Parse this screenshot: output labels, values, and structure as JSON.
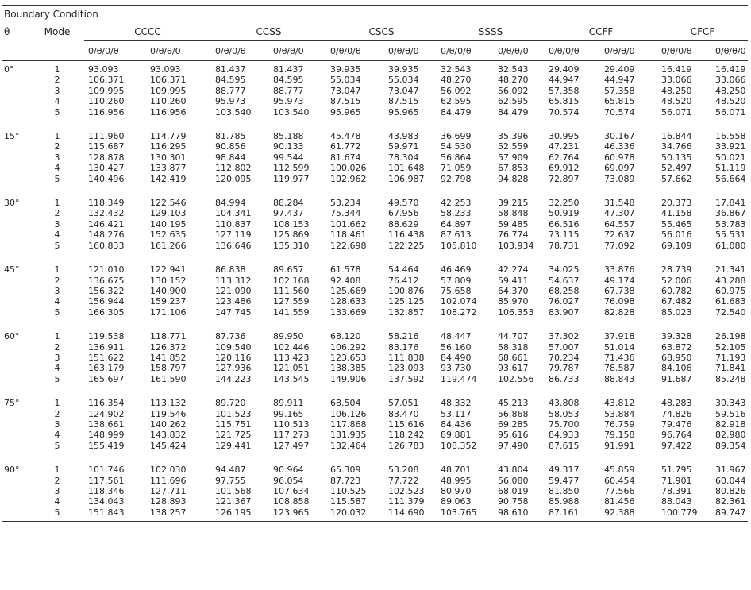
{
  "caption": "Boundary Condition",
  "headers": {
    "theta": "θ",
    "mode": "Mode",
    "groups": [
      "CCCC",
      "CCSS",
      "CSCS",
      "SSSS",
      "CCFF",
      "CFCF"
    ],
    "subs": [
      "0/θ/0/θ",
      "0/θ/θ/0",
      "0/θ/0/θ",
      "0/θ/θ/0",
      "0/θ/0/θ",
      "0/θ/θ/0",
      "0/θ/0/θ",
      "0/θ/θ/0",
      "0/θ/0/θ",
      "0/θ/θ/0",
      "0/θ/0/θ",
      "0/θ/θ/0"
    ]
  },
  "blocks": [
    {
      "angle": "0°",
      "rows": [
        {
          "mode": "1",
          "v": [
            "93.093",
            "93.093",
            "81.437",
            "81.437",
            "39.935",
            "39.935",
            "32.543",
            "32.543",
            "29.409",
            "29.409",
            "16.419",
            "16.419"
          ]
        },
        {
          "mode": "2",
          "v": [
            "106.371",
            "106.371",
            "84.595",
            "84.595",
            "55.034",
            "55.034",
            "48.270",
            "48.270",
            "44.947",
            "44.947",
            "33.066",
            "33.066"
          ]
        },
        {
          "mode": "3",
          "v": [
            "109.995",
            "109.995",
            "88.777",
            "88.777",
            "73.047",
            "73.047",
            "56.092",
            "56.092",
            "57.358",
            "57.358",
            "48.250",
            "48.250"
          ]
        },
        {
          "mode": "4",
          "v": [
            "110.260",
            "110.260",
            "95.973",
            "95.973",
            "87.515",
            "87.515",
            "62.595",
            "62.595",
            "65.815",
            "65.815",
            "48.520",
            "48.520"
          ]
        },
        {
          "mode": "5",
          "v": [
            "116.956",
            "116.956",
            "103.540",
            "103.540",
            "95.965",
            "95.965",
            "84.479",
            "84.479",
            "70.574",
            "70.574",
            "56.071",
            "56.071"
          ]
        }
      ]
    },
    {
      "angle": "15°",
      "rows": [
        {
          "mode": "1",
          "v": [
            "111.960",
            "114.779",
            "81.785",
            "85.188",
            "45.478",
            "43.983",
            "36.699",
            "35.396",
            "30.995",
            "30.167",
            "16.844",
            "16.558"
          ]
        },
        {
          "mode": "2",
          "v": [
            "115.687",
            "116.295",
            "90.856",
            "90.133",
            "61.772",
            "59.971",
            "54.530",
            "52.559",
            "47.231",
            "46.336",
            "34.766",
            "33.921"
          ]
        },
        {
          "mode": "3",
          "v": [
            "128.878",
            "130.301",
            "98.844",
            "99.544",
            "81.674",
            "78.304",
            "56.864",
            "57.909",
            "62.764",
            "60.978",
            "50.135",
            "50.021"
          ]
        },
        {
          "mode": "4",
          "v": [
            "130.427",
            "133.877",
            "112.802",
            "112.599",
            "100.026",
            "101.648",
            "71.059",
            "67.853",
            "69.912",
            "69.097",
            "52.497",
            "51.119"
          ]
        },
        {
          "mode": "5",
          "v": [
            "140.496",
            "142.419",
            "120.095",
            "119.977",
            "102.962",
            "106.987",
            "92.798",
            "94.828",
            "72.897",
            "73.089",
            "57.662",
            "56.664"
          ]
        }
      ]
    },
    {
      "angle": "30°",
      "rows": [
        {
          "mode": "1",
          "v": [
            "118.349",
            "122.546",
            "84.994",
            "88.284",
            "53.234",
            "49.570",
            "42.253",
            "39.215",
            "32.250",
            "31.548",
            "20.373",
            "17.841"
          ]
        },
        {
          "mode": "2",
          "v": [
            "132.432",
            "129.103",
            "104.341",
            "97.437",
            "75.344",
            "67.956",
            "58.233",
            "58.848",
            "50.919",
            "47.307",
            "41.158",
            "36.867"
          ]
        },
        {
          "mode": "3",
          "v": [
            "146.421",
            "140.195",
            "110.837",
            "108.153",
            "101.662",
            "88.629",
            "64.897",
            "59.485",
            "66.516",
            "64.557",
            "55.465",
            "53.783"
          ]
        },
        {
          "mode": "4",
          "v": [
            "148.276",
            "152.635",
            "127.119",
            "125.869",
            "118.461",
            "116.438",
            "87.613",
            "76.774",
            "73.115",
            "72.637",
            "56.016",
            "55.531"
          ]
        },
        {
          "mode": "5",
          "v": [
            "160.833",
            "161.266",
            "136.646",
            "135.310",
            "122.698",
            "122.225",
            "105.810",
            "103.934",
            "78.731",
            "77.092",
            "69.109",
            "61.080"
          ]
        }
      ]
    },
    {
      "angle": "45°",
      "rows": [
        {
          "mode": "1",
          "v": [
            "121.010",
            "122.941",
            "86.838",
            "89.657",
            "61.578",
            "54.464",
            "46.469",
            "42.274",
            "34.025",
            "33.876",
            "28.739",
            "21.341"
          ]
        },
        {
          "mode": "2",
          "v": [
            "136.675",
            "130.152",
            "113.312",
            "102.168",
            "92.408",
            "76.412",
            "57.809",
            "59.411",
            "54.637",
            "49.174",
            "52.006",
            "43.288"
          ]
        },
        {
          "mode": "3",
          "v": [
            "156.322",
            "140.900",
            "121.090",
            "111.560",
            "125.669",
            "100.876",
            "75.658",
            "64.370",
            "68.258",
            "67.738",
            "60.782",
            "60.975"
          ]
        },
        {
          "mode": "4",
          "v": [
            "156.944",
            "159.237",
            "123.486",
            "127.559",
            "128.633",
            "125.125",
            "102.074",
            "85.970",
            "76.027",
            "76.098",
            "67.482",
            "61.683"
          ]
        },
        {
          "mode": "5",
          "v": [
            "166.305",
            "171.106",
            "147.745",
            "141.559",
            "133.669",
            "132.857",
            "108.272",
            "106.353",
            "83.907",
            "82.828",
            "85.023",
            "72.540"
          ]
        }
      ]
    },
    {
      "angle": "60°",
      "rows": [
        {
          "mode": "1",
          "v": [
            "119.538",
            "118.771",
            "87.736",
            "89.950",
            "68.120",
            "58.216",
            "48.447",
            "44.707",
            "37.302",
            "37.918",
            "39.328",
            "26.198"
          ]
        },
        {
          "mode": "2",
          "v": [
            "136.911",
            "126.372",
            "109.540",
            "102.446",
            "106.292",
            "83.176",
            "56.160",
            "58.318",
            "57.007",
            "51.014",
            "63.872",
            "52.105"
          ]
        },
        {
          "mode": "3",
          "v": [
            "151.622",
            "141.852",
            "120.116",
            "113.423",
            "123.653",
            "111.838",
            "84.490",
            "68.661",
            "70.234",
            "71.436",
            "68.950",
            "71.193"
          ]
        },
        {
          "mode": "4",
          "v": [
            "163.179",
            "158.797",
            "127.936",
            "121.051",
            "138.385",
            "123.093",
            "93.730",
            "93.617",
            "79.787",
            "78.587",
            "84.106",
            "71.841"
          ]
        },
        {
          "mode": "5",
          "v": [
            "165.697",
            "161.590",
            "144.223",
            "143.545",
            "149.906",
            "137.592",
            "119.474",
            "102.556",
            "86.733",
            "88.843",
            "91.687",
            "85.248"
          ]
        }
      ]
    },
    {
      "angle": "75°",
      "rows": [
        {
          "mode": "1",
          "v": [
            "116.354",
            "113.132",
            "89.720",
            "89.911",
            "68.504",
            "57.051",
            "48.332",
            "45.213",
            "43.808",
            "43.812",
            "48.283",
            "30.343"
          ]
        },
        {
          "mode": "2",
          "v": [
            "124.902",
            "119.546",
            "101.523",
            "99.165",
            "106.126",
            "83.470",
            "53.117",
            "56.868",
            "58.053",
            "53.884",
            "74.826",
            "59.516"
          ]
        },
        {
          "mode": "3",
          "v": [
            "138.661",
            "140.262",
            "115.751",
            "110.513",
            "117.868",
            "115.616",
            "84.436",
            "69.285",
            "75.700",
            "76.759",
            "79.476",
            "82.918"
          ]
        },
        {
          "mode": "4",
          "v": [
            "148.999",
            "143.832",
            "121.725",
            "117.273",
            "131.935",
            "118.242",
            "89.881",
            "95.616",
            "84.933",
            "79.158",
            "96.764",
            "82.980"
          ]
        },
        {
          "mode": "5",
          "v": [
            "155.419",
            "145.424",
            "129.441",
            "127.497",
            "132.464",
            "126.783",
            "108.352",
            "97.490",
            "87.615",
            "91.991",
            "97.422",
            "89.354"
          ]
        }
      ]
    },
    {
      "angle": "90°",
      "rows": [
        {
          "mode": "1",
          "v": [
            "101.746",
            "102.030",
            "94.487",
            "90.964",
            "65.309",
            "53.208",
            "48.701",
            "43.804",
            "49.317",
            "45.859",
            "51.795",
            "31.967"
          ]
        },
        {
          "mode": "2",
          "v": [
            "117.561",
            "111.696",
            "97.755",
            "96.054",
            "87.723",
            "77.722",
            "48.995",
            "56.080",
            "59.477",
            "60.454",
            "71.901",
            "60.044"
          ]
        },
        {
          "mode": "3",
          "v": [
            "118.346",
            "127.711",
            "101.568",
            "107.634",
            "110.525",
            "102.523",
            "80.970",
            "68.019",
            "81.850",
            "77.566",
            "78.391",
            "80.826"
          ]
        },
        {
          "mode": "4",
          "v": [
            "134.043",
            "128.893",
            "121.367",
            "108.858",
            "115.587",
            "111.379",
            "89.063",
            "90.758",
            "85.988",
            "81.456",
            "88.043",
            "82.361"
          ]
        },
        {
          "mode": "5",
          "v": [
            "151.843",
            "138.257",
            "126.195",
            "123.965",
            "120.032",
            "114.690",
            "103.765",
            "98.610",
            "87.161",
            "92.388",
            "100.779",
            "89.747"
          ]
        }
      ]
    }
  ]
}
